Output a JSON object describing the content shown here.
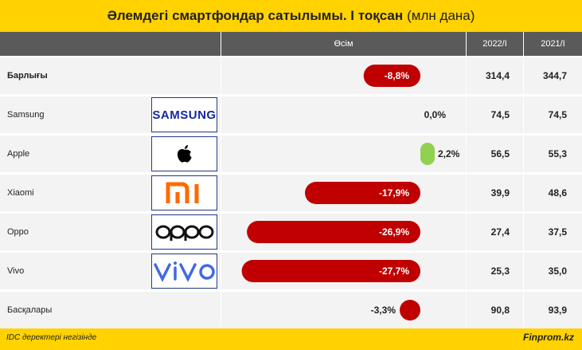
{
  "header": {
    "title_main": "Әлемдегі смартфондар сатылымы. I тоқсан",
    "title_unit": "(млн дана)"
  },
  "columns": {
    "growth": "Өсім",
    "y2022": "2022/I",
    "y2021": "2021/I"
  },
  "colors": {
    "negative": "#c00000",
    "positive": "#92d050",
    "header_bg": "#5a5a5a",
    "accent": "#ffd200"
  },
  "footer": {
    "source": "IDC деректері негізінде",
    "brand": "Finprom.kz"
  },
  "chart_data": {
    "type": "bar",
    "categories": [
      "Барлығы",
      "Samsung",
      "Apple",
      "Xiaomi",
      "Oppo",
      "Vivo",
      "Басқалары"
    ],
    "growth_labels": [
      "-8,8%",
      "0,0%",
      "2,2%",
      "-17,9%",
      "-26,9%",
      "-27,7%",
      "-3,3%"
    ],
    "growth": [
      -8.8,
      0.0,
      2.2,
      -17.9,
      -26.9,
      -27.7,
      -3.3
    ],
    "v2022": [
      "314,4",
      "74,5",
      "56,5",
      "39,9",
      "27,4",
      "25,3",
      "90,8"
    ],
    "v2021": [
      "344,7",
      "74,5",
      "55,3",
      "48,6",
      "37,5",
      "35,0",
      "93,9"
    ],
    "logos": [
      "",
      "SAMSUNG",
      "apple-icon",
      "mi",
      "oppo",
      "vivo",
      ""
    ]
  }
}
